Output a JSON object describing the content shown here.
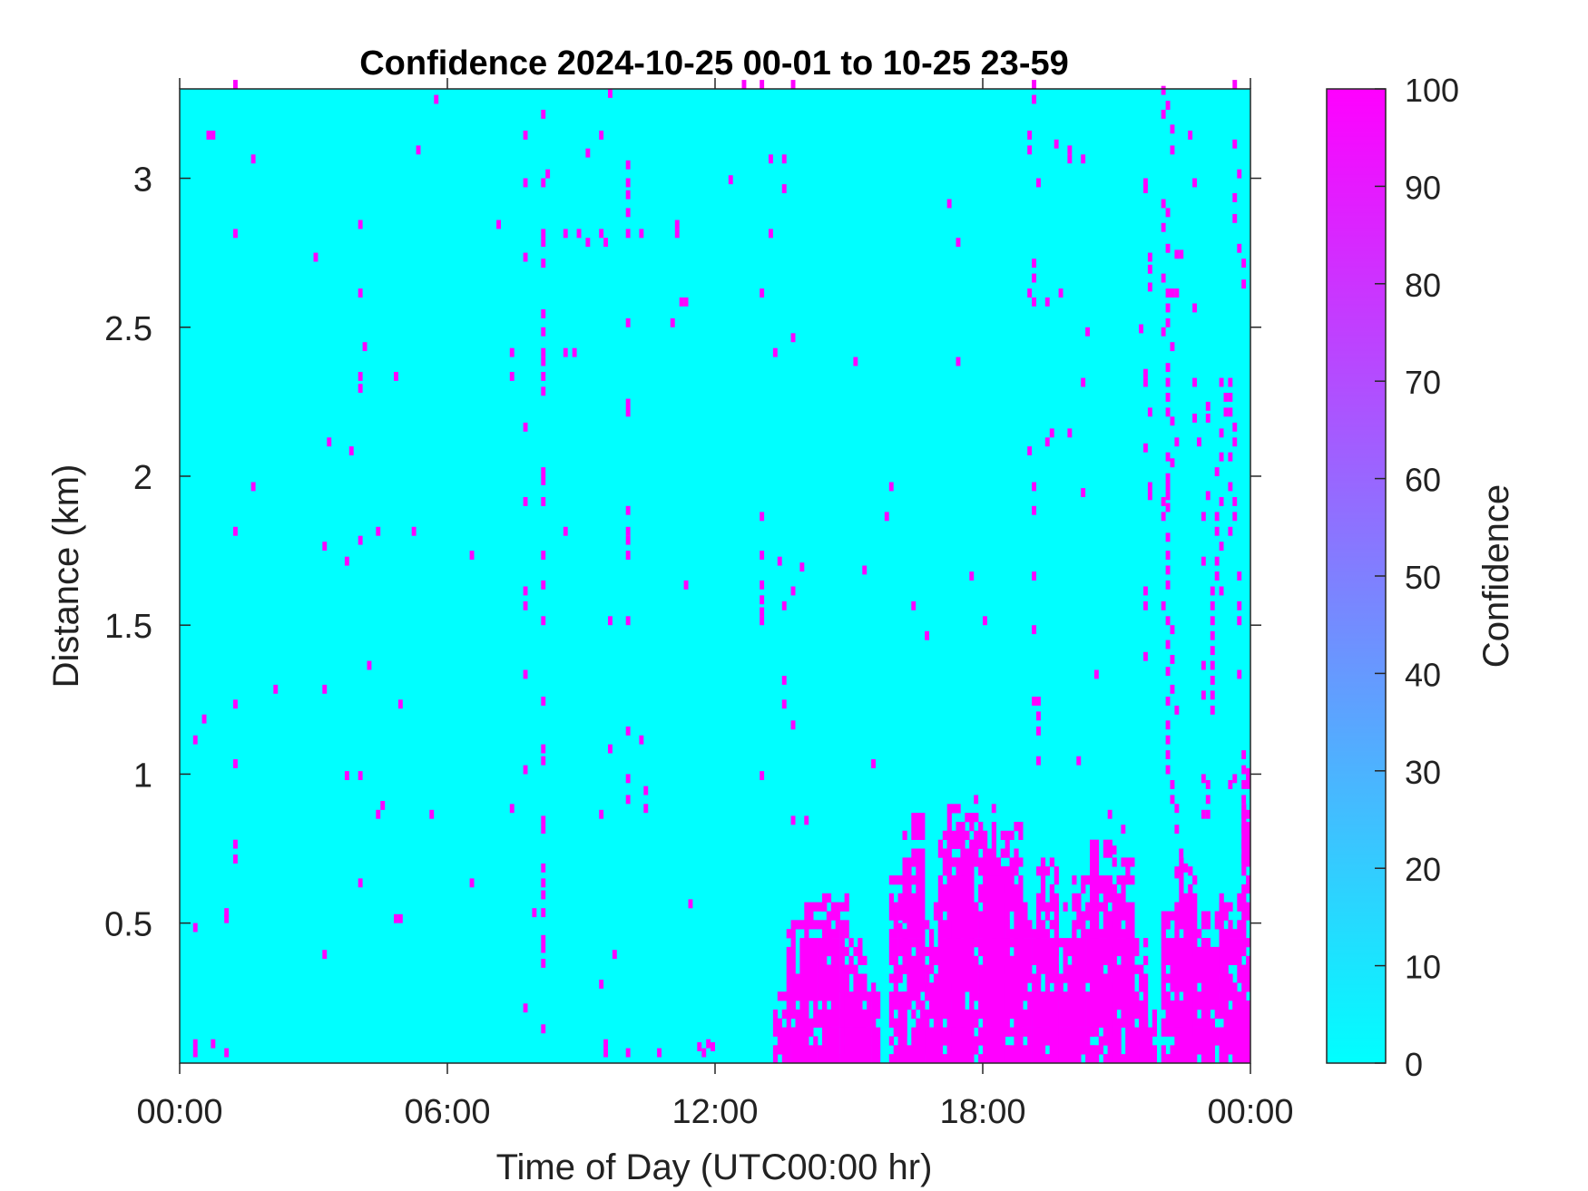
{
  "chart_data": {
    "type": "heatmap",
    "title": "Confidence 2024-10-25 00-01 to 10-25 23-59",
    "xlabel": "Time of Day (UTC00:00 hr)",
    "ylabel": "Distance (km)",
    "xlim": [
      0,
      24
    ],
    "ylim": [
      0.03,
      3.3
    ],
    "x_ticks": [
      {
        "value": 0,
        "label": "00:00"
      },
      {
        "value": 6,
        "label": "06:00"
      },
      {
        "value": 12,
        "label": "12:00"
      },
      {
        "value": 18,
        "label": "18:00"
      },
      {
        "value": 24,
        "label": "00:00"
      }
    ],
    "y_ticks": [
      {
        "value": 0.5,
        "label": "0.5"
      },
      {
        "value": 1,
        "label": "1"
      },
      {
        "value": 1.5,
        "label": "1.5"
      },
      {
        "value": 2,
        "label": "2"
      },
      {
        "value": 2.5,
        "label": "2.5"
      },
      {
        "value": 3,
        "label": "3"
      }
    ],
    "colorbar": {
      "label": "Confidence",
      "range": [
        0,
        100
      ],
      "ticks": [
        "0",
        "10",
        "20",
        "30",
        "40",
        "50",
        "60",
        "70",
        "80",
        "90",
        "100"
      ],
      "colormap": [
        "#00ffff",
        "#ff00ff"
      ]
    },
    "background_value": 0,
    "cell_value": 100,
    "cell_size": {
      "hours": 0.1,
      "km": 0.03
    },
    "cells_description": "hour/km pairs where confidence is 100; all other cells are 0",
    "cells": [
      [
        0.3,
        0.05
      ],
      [
        0.3,
        0.08
      ],
      [
        0.7,
        0.08
      ],
      [
        0.3,
        0.47
      ],
      [
        1.0,
        0.05
      ],
      [
        1.0,
        0.5
      ],
      [
        1.0,
        0.52
      ],
      [
        0.3,
        1.1
      ],
      [
        0.5,
        1.17
      ],
      [
        1.2,
        1.22
      ],
      [
        1.2,
        1.02
      ],
      [
        1.2,
        0.7
      ],
      [
        1.2,
        0.75
      ],
      [
        1.2,
        1.8
      ],
      [
        1.6,
        1.95
      ],
      [
        1.2,
        2.8
      ],
      [
        1.6,
        3.05
      ],
      [
        0.6,
        3.13
      ],
      [
        0.7,
        3.13
      ],
      [
        1.2,
        3.3
      ],
      [
        2.1,
        1.27
      ],
      [
        3.0,
        2.72
      ],
      [
        3.2,
        1.27
      ],
      [
        3.2,
        0.38
      ],
      [
        3.2,
        1.75
      ],
      [
        3.3,
        2.1
      ],
      [
        3.7,
        1.7
      ],
      [
        3.8,
        2.07
      ],
      [
        3.7,
        0.98
      ],
      [
        4.0,
        0.98
      ],
      [
        4.0,
        0.62
      ],
      [
        4.0,
        1.77
      ],
      [
        4.0,
        2.28
      ],
      [
        4.0,
        2.32
      ],
      [
        4.0,
        2.6
      ],
      [
        4.0,
        2.83
      ],
      [
        4.1,
        2.42
      ],
      [
        4.2,
        1.35
      ],
      [
        4.4,
        1.8
      ],
      [
        4.5,
        0.88
      ],
      [
        4.4,
        0.85
      ],
      [
        4.8,
        0.5
      ],
      [
        4.9,
        0.5
      ],
      [
        4.8,
        2.32
      ],
      [
        4.9,
        1.22
      ],
      [
        5.2,
        1.8
      ],
      [
        5.3,
        3.08
      ],
      [
        5.6,
        0.85
      ],
      [
        5.7,
        3.25
      ],
      [
        6.5,
        1.72
      ],
      [
        6.5,
        0.62
      ],
      [
        7.1,
        2.83
      ],
      [
        7.4,
        2.32
      ],
      [
        7.4,
        2.4
      ],
      [
        7.4,
        0.87
      ],
      [
        7.7,
        2.72
      ],
      [
        7.7,
        2.97
      ],
      [
        7.7,
        1.9
      ],
      [
        7.7,
        1.55
      ],
      [
        7.7,
        1.6
      ],
      [
        7.7,
        1.32
      ],
      [
        7.7,
        1.0
      ],
      [
        7.7,
        0.2
      ],
      [
        7.7,
        2.15
      ],
      [
        7.7,
        3.13
      ],
      [
        7.9,
        0.52
      ],
      [
        8.1,
        0.52
      ],
      [
        8.1,
        3.2
      ],
      [
        8.2,
        3.0
      ],
      [
        8.1,
        2.97
      ],
      [
        8.1,
        2.8
      ],
      [
        8.1,
        2.77
      ],
      [
        8.1,
        2.7
      ],
      [
        8.1,
        2.53
      ],
      [
        8.1,
        2.47
      ],
      [
        8.1,
        2.4
      ],
      [
        8.1,
        2.37
      ],
      [
        8.1,
        2.32
      ],
      [
        8.1,
        2.27
      ],
      [
        8.1,
        2.0
      ],
      [
        8.1,
        1.97
      ],
      [
        8.1,
        1.9
      ],
      [
        8.1,
        1.72
      ],
      [
        8.1,
        1.62
      ],
      [
        8.1,
        1.5
      ],
      [
        8.1,
        1.23
      ],
      [
        8.1,
        1.07
      ],
      [
        8.1,
        1.03
      ],
      [
        8.1,
        0.83
      ],
      [
        8.1,
        0.8
      ],
      [
        8.1,
        0.67
      ],
      [
        8.1,
        0.62
      ],
      [
        8.1,
        0.58
      ],
      [
        8.1,
        0.43
      ],
      [
        8.1,
        0.4
      ],
      [
        8.1,
        0.35
      ],
      [
        8.1,
        0.13
      ],
      [
        8.6,
        2.8
      ],
      [
        8.6,
        2.4
      ],
      [
        8.6,
        1.8
      ],
      [
        8.8,
        2.4
      ],
      [
        8.9,
        2.8
      ],
      [
        9.1,
        2.77
      ],
      [
        9.1,
        3.07
      ],
      [
        9.5,
        2.77
      ],
      [
        9.4,
        2.8
      ],
      [
        9.4,
        3.13
      ],
      [
        9.4,
        0.85
      ],
      [
        9.4,
        0.28
      ],
      [
        9.5,
        0.05
      ],
      [
        9.5,
        0.08
      ],
      [
        9.6,
        3.27
      ],
      [
        9.6,
        1.5
      ],
      [
        9.6,
        1.07
      ],
      [
        9.7,
        0.38
      ],
      [
        10.0,
        2.8
      ],
      [
        10.0,
        2.87
      ],
      [
        10.0,
        2.93
      ],
      [
        10.0,
        2.97
      ],
      [
        10.0,
        3.03
      ],
      [
        10.0,
        2.5
      ],
      [
        10.0,
        2.23
      ],
      [
        10.0,
        2.2
      ],
      [
        10.0,
        1.87
      ],
      [
        10.0,
        1.8
      ],
      [
        10.0,
        1.77
      ],
      [
        10.0,
        1.72
      ],
      [
        10.0,
        1.5
      ],
      [
        10.0,
        1.13
      ],
      [
        10.0,
        0.97
      ],
      [
        10.0,
        0.9
      ],
      [
        10.0,
        0.05
      ],
      [
        10.3,
        1.1
      ],
      [
        10.3,
        2.8
      ],
      [
        10.4,
        0.93
      ],
      [
        10.4,
        0.87
      ],
      [
        10.7,
        0.05
      ],
      [
        11.0,
        2.5
      ],
      [
        11.1,
        2.8
      ],
      [
        11.1,
        2.83
      ],
      [
        11.2,
        2.57
      ],
      [
        11.3,
        2.57
      ],
      [
        11.3,
        1.62
      ],
      [
        11.4,
        0.55
      ],
      [
        11.6,
        0.07
      ],
      [
        11.7,
        0.05
      ],
      [
        11.8,
        0.08
      ],
      [
        11.9,
        0.07
      ],
      [
        12.3,
        2.98
      ],
      [
        12.6,
        3.3
      ],
      [
        13.0,
        3.3
      ],
      [
        13.0,
        2.6
      ],
      [
        13.0,
        1.85
      ],
      [
        13.0,
        1.72
      ],
      [
        13.0,
        1.62
      ],
      [
        13.0,
        1.57
      ],
      [
        13.0,
        1.53
      ],
      [
        13.0,
        1.5
      ],
      [
        13.0,
        0.98
      ],
      [
        13.2,
        2.8
      ],
      [
        13.2,
        3.05
      ],
      [
        13.3,
        2.4
      ],
      [
        13.4,
        1.7
      ],
      [
        13.5,
        1.3
      ],
      [
        13.5,
        1.22
      ],
      [
        13.5,
        1.55
      ],
      [
        13.5,
        2.95
      ],
      [
        13.5,
        3.05
      ],
      [
        13.7,
        3.3
      ],
      [
        13.7,
        2.45
      ],
      [
        13.7,
        1.6
      ],
      [
        13.7,
        1.15
      ],
      [
        13.7,
        0.83
      ],
      [
        13.9,
        1.68
      ],
      [
        14.0,
        0.83
      ],
      [
        15.1,
        2.37
      ],
      [
        15.3,
        1.67
      ],
      [
        15.5,
        1.02
      ],
      [
        15.8,
        1.85
      ],
      [
        15.9,
        1.95
      ],
      [
        16.1,
        0.47
      ],
      [
        16.2,
        0.5
      ],
      [
        16.4,
        1.55
      ],
      [
        16.7,
        1.45
      ],
      [
        17.2,
        2.9
      ],
      [
        17.4,
        2.37
      ],
      [
        17.4,
        2.77
      ],
      [
        17.7,
        1.65
      ],
      [
        17.8,
        0.9
      ],
      [
        18.0,
        1.5
      ],
      [
        18.0,
        0.67
      ],
      [
        18.2,
        0.87
      ],
      [
        19.1,
        3.3
      ],
      [
        19.1,
        3.25
      ],
      [
        19.0,
        3.13
      ],
      [
        19.0,
        3.08
      ],
      [
        19.1,
        2.7
      ],
      [
        19.1,
        2.65
      ],
      [
        19.1,
        2.57
      ],
      [
        19.0,
        2.6
      ],
      [
        19.0,
        2.07
      ],
      [
        19.1,
        1.95
      ],
      [
        19.1,
        1.87
      ],
      [
        19.1,
        1.65
      ],
      [
        19.1,
        1.47
      ],
      [
        19.1,
        1.23
      ],
      [
        19.2,
        1.23
      ],
      [
        19.2,
        1.18
      ],
      [
        19.2,
        1.13
      ],
      [
        19.2,
        1.03
      ],
      [
        19.2,
        2.97
      ],
      [
        19.4,
        2.1
      ],
      [
        19.4,
        2.57
      ],
      [
        19.5,
        2.13
      ],
      [
        19.6,
        3.1
      ],
      [
        19.7,
        2.6
      ],
      [
        19.9,
        3.08
      ],
      [
        19.9,
        3.05
      ],
      [
        19.9,
        2.13
      ],
      [
        20.1,
        1.03
      ],
      [
        20.2,
        2.3
      ],
      [
        20.2,
        3.05
      ],
      [
        20.2,
        1.93
      ],
      [
        20.3,
        2.47
      ],
      [
        20.5,
        1.32
      ],
      [
        20.8,
        0.85
      ],
      [
        20.9,
        0.73
      ],
      [
        21.1,
        0.8
      ],
      [
        21.5,
        2.48
      ],
      [
        21.6,
        2.95
      ],
      [
        21.6,
        2.97
      ],
      [
        21.6,
        1.6
      ],
      [
        21.6,
        1.55
      ],
      [
        21.6,
        1.38
      ],
      [
        21.7,
        2.62
      ],
      [
        21.7,
        2.68
      ],
      [
        21.7,
        2.72
      ],
      [
        21.6,
        2.33
      ],
      [
        21.6,
        2.3
      ],
      [
        21.7,
        2.2
      ],
      [
        21.6,
        2.08
      ],
      [
        21.7,
        1.95
      ],
      [
        21.7,
        1.92
      ],
      [
        22.0,
        3.28
      ],
      [
        22.1,
        3.23
      ],
      [
        22.0,
        3.2
      ],
      [
        22.2,
        3.15
      ],
      [
        22.2,
        3.08
      ],
      [
        22.0,
        2.9
      ],
      [
        22.1,
        2.87
      ],
      [
        22.0,
        2.82
      ],
      [
        22.1,
        2.75
      ],
      [
        22.3,
        2.73
      ],
      [
        22.4,
        2.73
      ],
      [
        22.0,
        2.65
      ],
      [
        22.1,
        2.6
      ],
      [
        22.2,
        2.6
      ],
      [
        22.3,
        2.6
      ],
      [
        22.1,
        2.55
      ],
      [
        22.1,
        2.5
      ],
      [
        22.0,
        2.47
      ],
      [
        22.2,
        2.42
      ],
      [
        22.1,
        2.35
      ],
      [
        22.1,
        2.3
      ],
      [
        22.1,
        2.25
      ],
      [
        22.1,
        2.2
      ],
      [
        22.2,
        2.17
      ],
      [
        22.3,
        2.1
      ],
      [
        22.1,
        2.05
      ],
      [
        22.2,
        2.03
      ],
      [
        22.1,
        1.98
      ],
      [
        22.1,
        1.95
      ],
      [
        22.1,
        1.92
      ],
      [
        22.0,
        1.9
      ],
      [
        22.1,
        1.88
      ],
      [
        22.0,
        1.85
      ],
      [
        22.1,
        1.78
      ],
      [
        22.1,
        1.72
      ],
      [
        22.1,
        1.67
      ],
      [
        22.1,
        1.62
      ],
      [
        22.0,
        1.55
      ],
      [
        22.1,
        1.5
      ],
      [
        22.2,
        1.47
      ],
      [
        22.1,
        1.42
      ],
      [
        22.2,
        1.37
      ],
      [
        22.1,
        1.33
      ],
      [
        22.2,
        1.27
      ],
      [
        22.1,
        1.23
      ],
      [
        22.3,
        1.2
      ],
      [
        22.1,
        1.15
      ],
      [
        22.1,
        1.1
      ],
      [
        22.1,
        1.05
      ],
      [
        22.1,
        1.0
      ],
      [
        22.2,
        0.95
      ],
      [
        22.2,
        0.9
      ],
      [
        22.3,
        0.87
      ],
      [
        22.3,
        0.8
      ],
      [
        22.4,
        0.72
      ],
      [
        22.3,
        0.65
      ],
      [
        22.5,
        0.67
      ],
      [
        22.6,
        3.13
      ],
      [
        22.7,
        2.97
      ],
      [
        22.7,
        2.55
      ],
      [
        22.7,
        2.3
      ],
      [
        22.7,
        2.18
      ],
      [
        22.8,
        2.1
      ],
      [
        22.9,
        1.85
      ],
      [
        22.9,
        1.7
      ],
      [
        22.9,
        1.25
      ],
      [
        22.9,
        1.35
      ],
      [
        22.9,
        0.97
      ],
      [
        22.9,
        0.85
      ],
      [
        23.0,
        2.18
      ],
      [
        23.0,
        2.22
      ],
      [
        23.0,
        1.92
      ],
      [
        23.1,
        1.6
      ],
      [
        23.1,
        1.55
      ],
      [
        23.1,
        1.5
      ],
      [
        23.1,
        1.45
      ],
      [
        23.1,
        1.4
      ],
      [
        23.1,
        1.35
      ],
      [
        23.1,
        1.3
      ],
      [
        23.1,
        1.25
      ],
      [
        23.1,
        1.2
      ],
      [
        23.0,
        0.95
      ],
      [
        23.0,
        0.9
      ],
      [
        23.0,
        0.85
      ],
      [
        23.3,
        1.6
      ],
      [
        23.2,
        1.65
      ],
      [
        23.2,
        1.7
      ],
      [
        23.3,
        1.75
      ],
      [
        23.2,
        1.8
      ],
      [
        23.2,
        1.85
      ],
      [
        23.3,
        1.9
      ],
      [
        23.2,
        2.0
      ],
      [
        23.3,
        2.05
      ],
      [
        23.3,
        2.13
      ],
      [
        23.4,
        2.2
      ],
      [
        23.4,
        2.25
      ],
      [
        23.3,
        2.3
      ],
      [
        23.5,
        2.3
      ],
      [
        23.5,
        2.25
      ],
      [
        23.5,
        2.2
      ],
      [
        23.6,
        2.15
      ],
      [
        23.6,
        2.1
      ],
      [
        23.5,
        2.05
      ],
      [
        23.5,
        1.95
      ],
      [
        23.6,
        1.9
      ],
      [
        23.6,
        1.85
      ],
      [
        23.5,
        1.8
      ],
      [
        23.6,
        3.3
      ],
      [
        23.6,
        3.1
      ],
      [
        23.7,
        3.0
      ],
      [
        23.6,
        2.92
      ],
      [
        23.6,
        2.85
      ],
      [
        23.7,
        2.75
      ],
      [
        23.8,
        2.7
      ],
      [
        23.8,
        2.63
      ],
      [
        23.7,
        1.65
      ],
      [
        23.7,
        1.55
      ],
      [
        23.7,
        1.5
      ],
      [
        23.7,
        1.32
      ],
      [
        23.6,
        0.97
      ],
      [
        23.5,
        0.95
      ],
      [
        23.8,
        1.05
      ],
      [
        23.8,
        1.0
      ],
      [
        23.8,
        0.95
      ],
      [
        23.8,
        0.9
      ],
      [
        23.8,
        0.85
      ],
      [
        23.8,
        0.8
      ],
      [
        23.8,
        0.75
      ],
      [
        23.8,
        0.7
      ],
      [
        23.9,
        0.95
      ],
      [
        23.9,
        0.85
      ]
    ],
    "cell_blocks": [
      [
        13.3,
        13.8,
        0.03,
        0.27
      ],
      [
        13.6,
        14.1,
        0.03,
        0.5
      ],
      [
        14.0,
        14.6,
        0.03,
        0.55
      ],
      [
        14.4,
        15.0,
        0.03,
        0.6
      ],
      [
        14.8,
        15.4,
        0.03,
        0.45
      ],
      [
        15.1,
        15.7,
        0.03,
        0.3
      ],
      [
        15.9,
        16.3,
        0.03,
        0.65
      ],
      [
        16.2,
        16.7,
        0.03,
        0.85
      ],
      [
        16.6,
        17.1,
        0.03,
        0.55
      ],
      [
        17.0,
        17.6,
        0.03,
        0.8
      ],
      [
        17.2,
        17.8,
        0.03,
        0.9
      ],
      [
        17.6,
        18.3,
        0.03,
        0.85
      ],
      [
        18.0,
        18.6,
        0.03,
        0.75
      ],
      [
        18.3,
        18.9,
        0.03,
        0.82
      ],
      [
        18.7,
        19.3,
        0.03,
        0.6
      ],
      [
        19.2,
        19.7,
        0.03,
        0.7
      ],
      [
        19.5,
        20.1,
        0.03,
        0.55
      ],
      [
        20.0,
        20.6,
        0.03,
        0.65
      ],
      [
        20.4,
        21.0,
        0.03,
        0.78
      ],
      [
        20.8,
        21.4,
        0.03,
        0.7
      ],
      [
        21.2,
        21.7,
        0.03,
        0.45
      ],
      [
        21.5,
        21.9,
        0.03,
        0.2
      ],
      [
        22.0,
        22.6,
        0.03,
        0.55
      ],
      [
        22.3,
        22.8,
        0.03,
        0.7
      ],
      [
        22.5,
        23.1,
        0.03,
        0.5
      ],
      [
        22.9,
        23.5,
        0.03,
        0.55
      ],
      [
        23.3,
        23.8,
        0.03,
        0.6
      ],
      [
        23.6,
        24.0,
        0.03,
        0.3
      ],
      [
        23.8,
        24.0,
        0.03,
        1.0
      ]
    ]
  }
}
